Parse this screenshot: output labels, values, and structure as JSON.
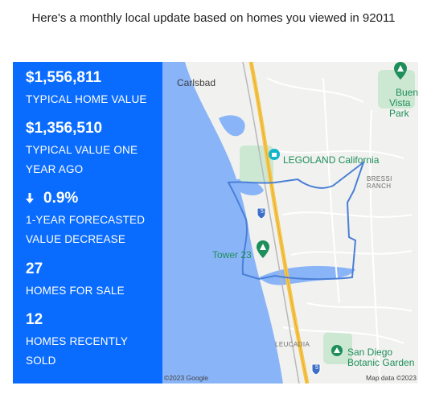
{
  "intro_text": "Here's a monthly local update based on homes you viewed in 92011",
  "stats": {
    "typical_value": "$1,556,811",
    "typical_value_label": "TYPICAL HOME VALUE",
    "year_ago_value": "$1,356,510",
    "year_ago_label_line1": "TYPICAL VALUE ONE",
    "year_ago_label_line2": "YEAR AGO",
    "forecast_value": "0.9%",
    "forecast_direction_icon": "arrow-down-icon",
    "forecast_label_line1": "1-YEAR FORECASTED",
    "forecast_label_line2": "VALUE DECREASE",
    "homes_for_sale_value": "27",
    "homes_for_sale_label": "HOMES FOR SALE",
    "recently_sold_value": "12",
    "recently_sold_label_line1": "HOMES RECENTLY",
    "recently_sold_label_line2": "SOLD"
  },
  "map": {
    "labels": {
      "carlsbad": "Carlsbad",
      "legoland": "LEGOLAND California",
      "bressi_ranch": "BRESSI RANCH",
      "buena_vista_line1": "Buena",
      "buena_vista_line2": "Vista Park",
      "tower23": "Tower 23",
      "leucadia": "LEUCADIA",
      "botanic_line1": "San Diego",
      "botanic_line2": "Botanic Garden",
      "highway_shield": "5"
    },
    "copyright": "©2023 Google",
    "map_data": "Map data ©2023",
    "colors": {
      "water": "#8ab4f8",
      "land": "#f1f2ef",
      "highway": "#f6c549",
      "boundary": "#4a7fd6",
      "park": "#cde8d2",
      "poi_green": "#1e8e5a"
    }
  },
  "colors": {
    "stats_panel": "#0a6cff"
  }
}
